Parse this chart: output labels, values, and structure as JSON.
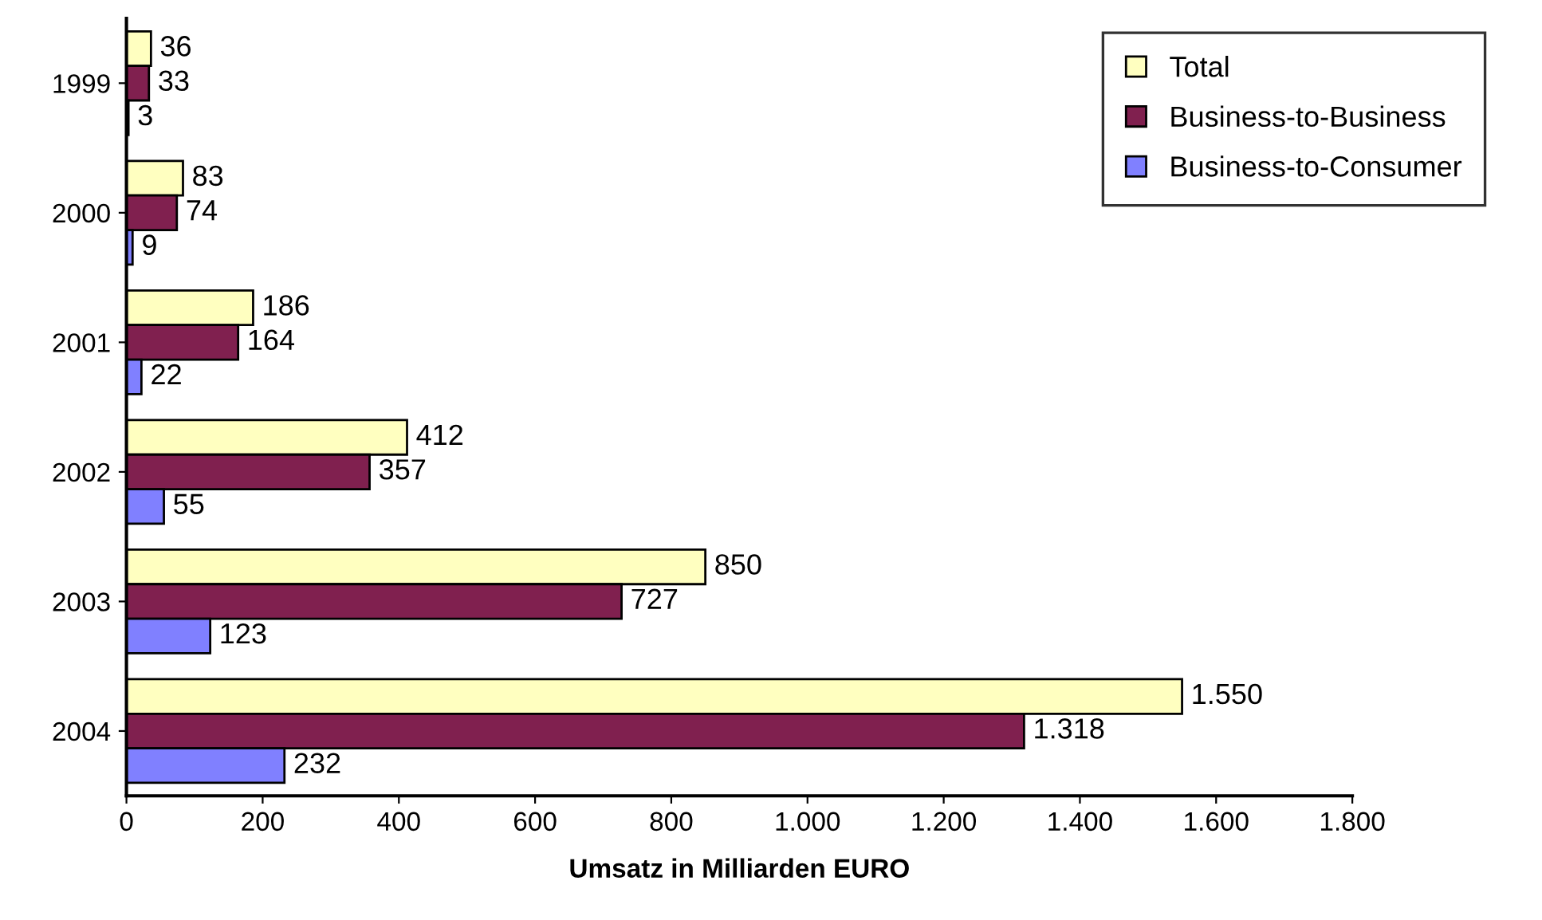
{
  "chart_data": {
    "type": "bar",
    "orientation": "horizontal",
    "xlabel": "Umsatz in Milliarden EURO",
    "categories": [
      "1999",
      "2000",
      "2001",
      "2002",
      "2003",
      "2004"
    ],
    "series": [
      {
        "name": "Total",
        "color": "#ffffc0",
        "values": [
          36,
          83,
          186,
          412,
          850,
          1550
        ],
        "value_labels": [
          "36",
          "83",
          "186",
          "412",
          "850",
          "1.550"
        ]
      },
      {
        "name": "Business-to-Business",
        "color": "#80204f",
        "values": [
          33,
          74,
          164,
          357,
          727,
          1318
        ],
        "value_labels": [
          "33",
          "74",
          "164",
          "357",
          "727",
          "1.318"
        ]
      },
      {
        "name": "Business-to-Consumer",
        "color": "#8080ff",
        "values": [
          3,
          9,
          22,
          55,
          123,
          232
        ],
        "value_labels": [
          "3",
          "9",
          "22",
          "55",
          "123",
          "232"
        ]
      }
    ],
    "xlim": [
      0,
      1800
    ],
    "xticks": [
      0,
      200,
      400,
      600,
      800,
      {
        "value": 1000,
        "label": "1.000"
      },
      {
        "value": 1200,
        "label": "1.200"
      },
      {
        "value": 1400,
        "label": "1.400"
      },
      {
        "value": 1600,
        "label": "1.600"
      },
      {
        "value": 1800,
        "label": "1.800"
      }
    ],
    "legend": "top right",
    "grid": false
  }
}
